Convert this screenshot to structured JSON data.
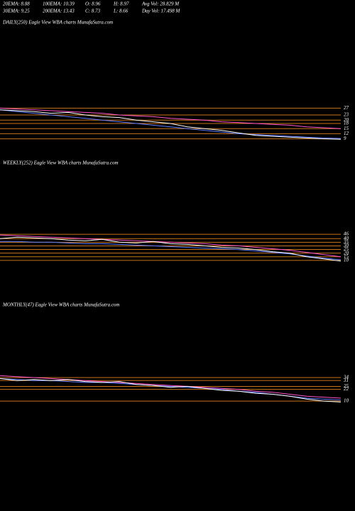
{
  "header": {
    "rows": [
      [
        "20EMA: 8.88",
        "100EMA: 10.39",
        "O: 8.96",
        "H: 8.97",
        "Avg Vol: 28.829 M"
      ],
      [
        "30EMA: 9.25",
        "200EMA: 13.43",
        "C: 8.73",
        "L: 8.66",
        "Day Vol: 17.498 M"
      ]
    ]
  },
  "chart_data": [
    {
      "type": "line",
      "title": "DAILY(250) Eagle  View  WBA charts MunafaSutra.com",
      "ylim": [
        8,
        28
      ],
      "yticks": [
        9,
        12,
        15,
        18,
        20,
        23,
        27
      ],
      "grid": true,
      "grid_color": "#c8741a",
      "series": [
        {
          "color": "#ff55cc",
          "values": [
            27,
            26.5,
            26,
            25.5,
            25,
            24.5,
            24,
            23,
            22.5,
            22,
            21,
            20.5,
            20,
            19,
            18.5,
            18,
            17.5,
            17,
            16,
            15.5,
            15
          ]
        },
        {
          "color": "#5b7bff",
          "values": [
            26,
            25,
            24,
            23,
            22,
            21,
            20,
            19,
            18,
            17,
            16,
            15,
            14,
            13,
            12,
            11.5,
            11,
            10.5,
            10,
            9.5,
            9.2
          ]
        },
        {
          "color": "#ffffff",
          "values": [
            26,
            25.5,
            25,
            24,
            24.5,
            23,
            22,
            21.5,
            20,
            19,
            18,
            16,
            15,
            14,
            12.5,
            11,
            10.5,
            10,
            9.5,
            9,
            8.7
          ]
        }
      ]
    },
    {
      "type": "line",
      "title": "WEEKLY(252) Eagle  View  WBA charts MunafaSutra.com",
      "ylim": [
        5,
        50
      ],
      "yticks": [
        10,
        15,
        20,
        25,
        30,
        35,
        40,
        46
      ],
      "grid": true,
      "grid_color": "#c8741a",
      "series": [
        {
          "color": "#ff55cc",
          "values": [
            45,
            44,
            43,
            42,
            41,
            40,
            39,
            38,
            37,
            36,
            35,
            34,
            33,
            31,
            30,
            28,
            26,
            24,
            21,
            18,
            15
          ]
        },
        {
          "color": "#5b7bff",
          "values": [
            36,
            36,
            35,
            35,
            34,
            33,
            33,
            32,
            31,
            30,
            29,
            28,
            27,
            26,
            25,
            23,
            21,
            19,
            16,
            13,
            11
          ]
        },
        {
          "color": "#ffffff",
          "values": [
            40,
            42,
            41,
            40,
            38,
            37,
            39,
            35,
            34,
            36,
            33,
            32,
            30,
            28,
            27,
            25,
            22,
            20,
            15,
            12,
            9
          ]
        }
      ]
    },
    {
      "type": "line",
      "title": "MONTHLY(47) Eagle  View  WBA charts MunafaSutra.com",
      "ylim": [
        5,
        50
      ],
      "yticks": [
        10,
        22,
        25,
        31,
        34
      ],
      "grid": true,
      "grid_color": "#c8741a",
      "series": [
        {
          "color": "#ff55cc",
          "values": [
            36,
            35,
            34,
            33,
            32,
            31,
            30,
            29,
            28,
            27,
            26,
            25,
            24,
            23,
            22,
            20,
            19,
            17,
            15,
            14,
            13
          ]
        },
        {
          "color": "#5b7bff",
          "values": [
            33,
            32,
            31,
            31,
            30,
            29,
            29,
            28,
            27,
            26,
            25,
            24,
            23,
            22,
            20,
            19,
            17,
            15,
            13,
            12,
            11
          ]
        },
        {
          "color": "#ffffff",
          "values": [
            33,
            31,
            32,
            31,
            32,
            30,
            29,
            30,
            27,
            26,
            24,
            25,
            23,
            21,
            20,
            18,
            17,
            15,
            12,
            10,
            9
          ]
        }
      ]
    }
  ]
}
